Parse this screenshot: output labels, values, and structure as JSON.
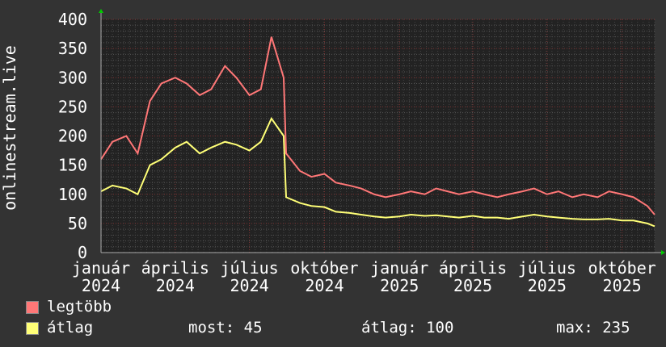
{
  "chart_data": {
    "type": "line",
    "ylabel": "onlinestream.live",
    "ylim": [
      0,
      400
    ],
    "yticks": [
      0,
      50,
      100,
      150,
      200,
      250,
      300,
      350,
      400
    ],
    "xlim": [
      "2024-01-01",
      "2025-11-10"
    ],
    "xticks": [
      {
        "date": "2024-01-01",
        "label": "január 2024"
      },
      {
        "date": "2024-04-01",
        "label": "április 2024"
      },
      {
        "date": "2024-07-01",
        "label": "július 2024"
      },
      {
        "date": "2024-10-01",
        "label": "október 2024"
      },
      {
        "date": "2025-01-01",
        "label": "január 2025"
      },
      {
        "date": "2025-04-01",
        "label": "április 2025"
      },
      {
        "date": "2025-07-01",
        "label": "július 2025"
      },
      {
        "date": "2025-10-01",
        "label": "október 2025"
      }
    ],
    "grid": true,
    "legend_placement": "bottom-left",
    "x": [
      "2024-01-01",
      "2024-01-15",
      "2024-02-01",
      "2024-02-15",
      "2024-03-01",
      "2024-03-15",
      "2024-04-01",
      "2024-04-15",
      "2024-05-01",
      "2024-05-15",
      "2024-06-01",
      "2024-06-15",
      "2024-07-01",
      "2024-07-15",
      "2024-07-28",
      "2024-08-12",
      "2024-08-15",
      "2024-09-01",
      "2024-09-15",
      "2024-10-01",
      "2024-10-15",
      "2024-11-01",
      "2024-11-15",
      "2024-12-01",
      "2024-12-15",
      "2025-01-01",
      "2025-01-15",
      "2025-02-01",
      "2025-02-15",
      "2025-03-01",
      "2025-03-15",
      "2025-04-01",
      "2025-04-15",
      "2025-05-01",
      "2025-05-15",
      "2025-06-01",
      "2025-06-15",
      "2025-07-01",
      "2025-07-15",
      "2025-08-01",
      "2025-08-15",
      "2025-09-01",
      "2025-09-15",
      "2025-10-01",
      "2025-10-15",
      "2025-11-01",
      "2025-11-10"
    ],
    "series": [
      {
        "name": "legtöbb",
        "color": "#ff7777",
        "values": [
          160,
          190,
          200,
          170,
          260,
          290,
          300,
          290,
          270,
          280,
          320,
          300,
          270,
          280,
          370,
          300,
          170,
          140,
          130,
          135,
          120,
          115,
          110,
          100,
          95,
          100,
          105,
          100,
          110,
          105,
          100,
          105,
          100,
          95,
          100,
          105,
          110,
          100,
          105,
          95,
          100,
          95,
          105,
          100,
          95,
          80,
          65
        ]
      },
      {
        "name": "átlag",
        "color": "#ffff77",
        "values": [
          105,
          115,
          110,
          100,
          150,
          160,
          180,
          190,
          170,
          180,
          190,
          185,
          175,
          190,
          230,
          200,
          95,
          85,
          80,
          78,
          70,
          68,
          65,
          62,
          60,
          62,
          65,
          63,
          64,
          62,
          60,
          63,
          60,
          60,
          58,
          62,
          65,
          62,
          60,
          58,
          57,
          57,
          58,
          55,
          55,
          50,
          45
        ]
      }
    ]
  },
  "legend": {
    "items": [
      {
        "label": "legtöbb",
        "color": "#ff7777"
      },
      {
        "label": "átlag",
        "color": "#ffff77"
      }
    ],
    "most": "most: 45",
    "atlag": "átlag: 100",
    "max": "max: 235"
  }
}
